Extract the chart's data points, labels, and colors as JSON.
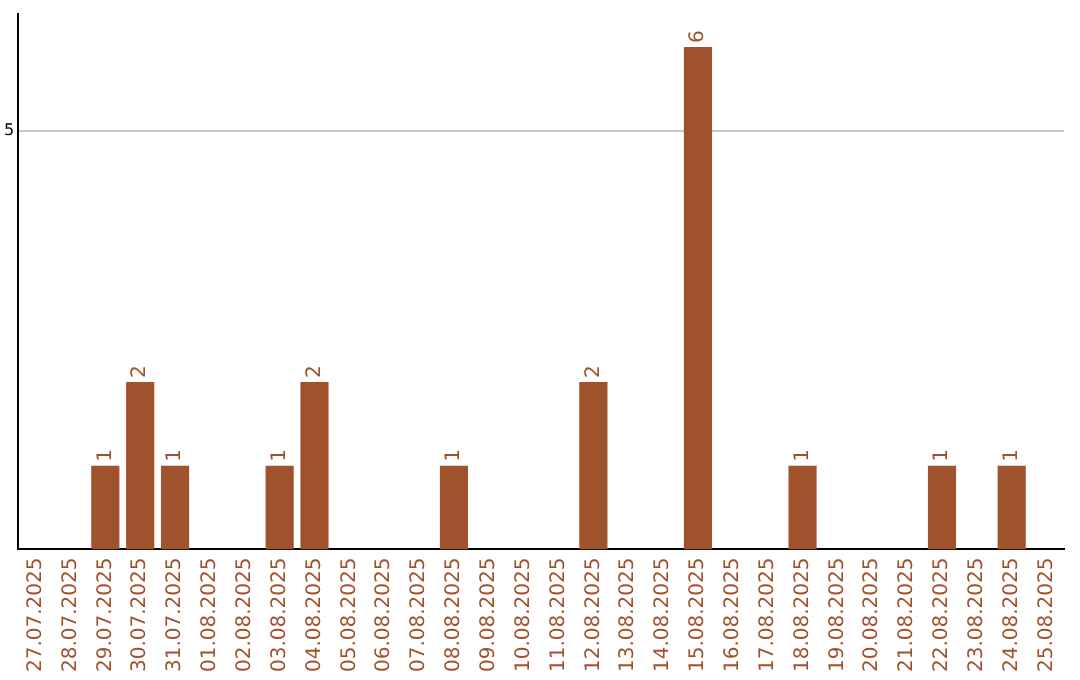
{
  "chart_data": {
    "type": "bar",
    "categories": [
      "27.07.2025",
      "28.07.2025",
      "29.07.2025",
      "30.07.2025",
      "31.07.2025",
      "01.08.2025",
      "02.08.2025",
      "03.08.2025",
      "04.08.2025",
      "05.08.2025",
      "06.08.2025",
      "07.08.2025",
      "08.08.2025",
      "09.08.2025",
      "10.08.2025",
      "11.08.2025",
      "12.08.2025",
      "13.08.2025",
      "14.08.2025",
      "15.08.2025",
      "16.08.2025",
      "17.08.2025",
      "18.08.2025",
      "19.08.2025",
      "20.08.2025",
      "21.08.2025",
      "22.08.2025",
      "23.08.2025",
      "24.08.2025",
      "25.08.2025"
    ],
    "values": [
      0,
      0,
      1,
      2,
      1,
      0,
      0,
      1,
      2,
      0,
      0,
      0,
      1,
      0,
      0,
      0,
      2,
      0,
      0,
      6,
      0,
      0,
      1,
      0,
      0,
      0,
      1,
      0,
      1,
      0
    ],
    "value_labels": [
      null,
      null,
      "1",
      "2",
      "1",
      null,
      null,
      "1",
      "2",
      null,
      null,
      null,
      "1",
      null,
      null,
      null,
      "2",
      null,
      null,
      "6",
      null,
      null,
      "1",
      null,
      null,
      null,
      "1",
      null,
      "1",
      null
    ],
    "color": "#a0522d",
    "ylim": [
      0,
      6.4
    ],
    "yticks": [
      5
    ],
    "grid": "y"
  }
}
